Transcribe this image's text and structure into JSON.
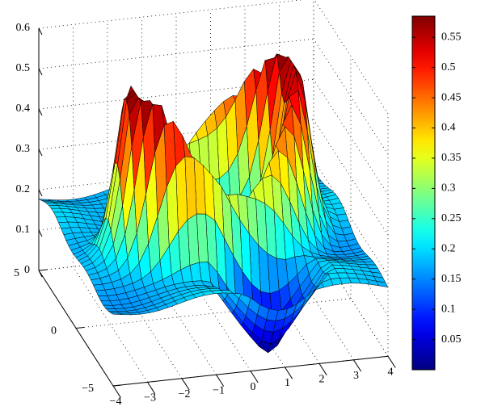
{
  "chart_data": {
    "type": "surface3d",
    "title": "",
    "xlabel": "",
    "ylabel": "",
    "zlabel": "",
    "x_ticks": [
      -4,
      -3,
      -2,
      -1,
      0,
      1,
      2,
      3,
      4
    ],
    "y_ticks": [
      -5,
      0,
      5
    ],
    "z_ticks": [
      0,
      0.1,
      0.2,
      0.3,
      0.4,
      0.5,
      0.6
    ],
    "xlim": [
      -4,
      4
    ],
    "ylim": [
      -5,
      5
    ],
    "zlim": [
      0,
      0.6
    ],
    "grid": true,
    "colormap": "jet",
    "colorbar": {
      "location": "right",
      "range": [
        0,
        0.585
      ],
      "ticks": [
        0.05,
        0.1,
        0.15,
        0.2,
        0.25,
        0.3,
        0.35,
        0.4,
        0.45,
        0.5,
        0.55
      ]
    },
    "surface_features": [
      {
        "feature": "raised ridge ring",
        "approx_peak_z": 0.58
      },
      {
        "feature": "central dome",
        "approx_peak_z": 0.22
      },
      {
        "feature": "outer plateau",
        "approx_z": 0.18
      },
      {
        "feature": "downward spike",
        "approx_min_z": 0.0
      }
    ]
  }
}
